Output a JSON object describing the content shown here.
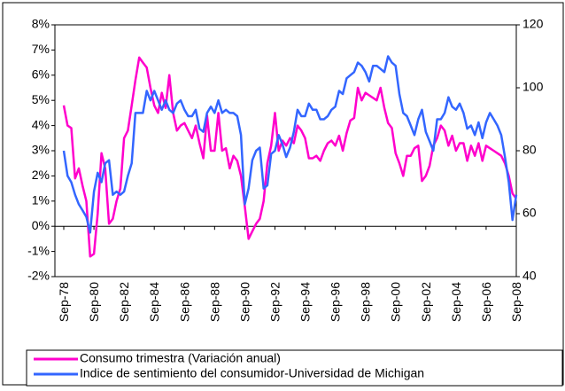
{
  "chart_data": {
    "type": "line",
    "categories": [
      "Sep-78",
      null,
      null,
      null,
      null,
      null,
      null,
      null,
      "Sep-80",
      null,
      null,
      null,
      null,
      null,
      null,
      null,
      "Sep-82",
      null,
      null,
      null,
      null,
      null,
      null,
      null,
      "Sep-84",
      null,
      null,
      null,
      null,
      null,
      null,
      null,
      "Sep-86",
      null,
      null,
      null,
      null,
      null,
      null,
      null,
      "Sep-88",
      null,
      null,
      null,
      null,
      null,
      null,
      null,
      "Sep-90",
      null,
      null,
      null,
      null,
      null,
      null,
      null,
      "Sep-92",
      null,
      null,
      null,
      null,
      null,
      null,
      null,
      "Sep-94",
      null,
      null,
      null,
      null,
      null,
      null,
      null,
      "Sep-96",
      null,
      null,
      null,
      null,
      null,
      null,
      null,
      "Sep-98",
      null,
      null,
      null,
      null,
      null,
      null,
      null,
      "Sep-00",
      null,
      null,
      null,
      null,
      null,
      null,
      null,
      "Sep-02",
      null,
      null,
      null,
      null,
      null,
      null,
      null,
      "Sep-04",
      null,
      null,
      null,
      null,
      null,
      null,
      null,
      "Sep-06",
      null,
      null,
      null,
      null,
      null,
      null,
      null,
      "Sep-08"
    ],
    "series": [
      {
        "name": "Consumo trimestra (Variación anual)",
        "color": "#ff00cc",
        "values": [
          4.8,
          4.0,
          3.9,
          1.9,
          2.3,
          1.6,
          1.0,
          -1.2,
          -1.1,
          0.5,
          2.9,
          2.3,
          0.1,
          0.3,
          1.0,
          1.5,
          3.5,
          3.8,
          4.8,
          5.8,
          6.7,
          6.5,
          6.3,
          5.5,
          4.8,
          4.5,
          5.3,
          4.7,
          6.0,
          4.5,
          3.8,
          4.0,
          4.1,
          3.8,
          3.5,
          4.0,
          3.3,
          2.7,
          4.4,
          3.0,
          3.0,
          4.5,
          3.0,
          3.1,
          2.3,
          2.8,
          2.6,
          2.0,
          0.8,
          -0.5,
          -0.2,
          0.1,
          0.3,
          1.0,
          2.5,
          3.2,
          4.5,
          3.0,
          3.4,
          3.2,
          3.5,
          3.3,
          4.0,
          3.8,
          3.5,
          2.7,
          2.7,
          2.8,
          2.6,
          3.0,
          3.3,
          3.4,
          3.2,
          3.6,
          3.0,
          3.7,
          4.2,
          4.3,
          5.5,
          5.0,
          5.3,
          5.2,
          5.1,
          5.0,
          5.5,
          4.7,
          4.1,
          3.9,
          2.9,
          2.5,
          2.0,
          2.8,
          2.8,
          3.1,
          3.2,
          1.8,
          2.0,
          2.4,
          3.2,
          3.5,
          4.0,
          3.8,
          3.2,
          3.6,
          3.0,
          3.3,
          3.3,
          2.6,
          3.2,
          2.8,
          3.3,
          2.6,
          3.2,
          3.1,
          3.0,
          2.9,
          2.8,
          2.5,
          2.0,
          1.3,
          1.1
        ]
      },
      {
        "name": "Indice de sentimiento del consumidor-Universidad de Michigan",
        "color": "#3366ff",
        "axis": "y2",
        "values": [
          80,
          72,
          70,
          66,
          63,
          61,
          59,
          54,
          67,
          73,
          70,
          76,
          77,
          66,
          67,
          66,
          67,
          72,
          76,
          92,
          92,
          92,
          99,
          96,
          99,
          96,
          93,
          96,
          93,
          92,
          95,
          96,
          93,
          91,
          91,
          93,
          87,
          86,
          92,
          94,
          92,
          96,
          92,
          93,
          92,
          92,
          91,
          85,
          63,
          68,
          77,
          80,
          81,
          68,
          69,
          79,
          80,
          85,
          82,
          78,
          81,
          86,
          93,
          91,
          91,
          95,
          93,
          93,
          90,
          90,
          91,
          93,
          94,
          99,
          98,
          103,
          104,
          105,
          108,
          107,
          105,
          102,
          107,
          107,
          106,
          105,
          110,
          108,
          107,
          98,
          92,
          91,
          88,
          85,
          90,
          93,
          86,
          83,
          80,
          90,
          90,
          92,
          97,
          94,
          93,
          95,
          92,
          87,
          88,
          85,
          89,
          84,
          89,
          92,
          90,
          88,
          85,
          78,
          70,
          58,
          66
        ]
      }
    ],
    "ylim": [
      -2,
      8
    ],
    "yticks": [
      {
        "value": -2,
        "label": "-2%"
      },
      {
        "value": -1,
        "label": "-1%"
      },
      {
        "value": 0,
        "label": "0%"
      },
      {
        "value": 1,
        "label": "1%"
      },
      {
        "value": 2,
        "label": "2%"
      },
      {
        "value": 3,
        "label": "3%"
      },
      {
        "value": 4,
        "label": "4%"
      },
      {
        "value": 5,
        "label": "5%"
      },
      {
        "value": 6,
        "label": "6%"
      },
      {
        "value": 7,
        "label": "7%"
      },
      {
        "value": 8,
        "label": "8%"
      }
    ],
    "y2lim": [
      40,
      120
    ],
    "y2ticks": [
      40,
      60,
      80,
      100,
      120
    ],
    "grid": false
  }
}
